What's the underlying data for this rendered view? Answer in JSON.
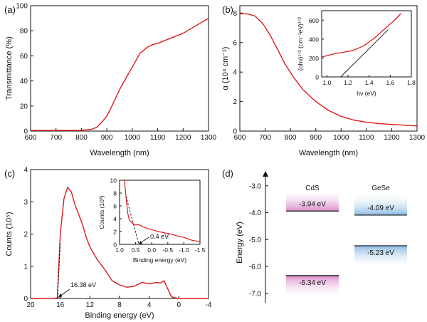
{
  "chart_data": [
    {
      "panel": "(a)",
      "type": "line",
      "xlabel": "Wavelength (nm)",
      "ylabel": "Transmittance (%)",
      "xlim": [
        600,
        1300
      ],
      "ylim": [
        0,
        100
      ],
      "xticks": [
        "600",
        "700",
        "800",
        "900",
        "1000",
        "1100",
        "1200",
        "1300"
      ],
      "yticks": [
        "0",
        "20",
        "40",
        "60",
        "80",
        "100"
      ],
      "color": "#e0191d",
      "series": [
        {
          "x": [
            600,
            700,
            800,
            840,
            860,
            880,
            900,
            920,
            950,
            980,
            1000,
            1030,
            1060,
            1080,
            1100,
            1150,
            1200,
            1250,
            1300
          ],
          "y": [
            0.5,
            0.5,
            0.6,
            1.5,
            3,
            7,
            12,
            20,
            33,
            44,
            51,
            62,
            67,
            69,
            70,
            74,
            78,
            84,
            90
          ]
        }
      ]
    },
    {
      "panel": "(b)",
      "type": "line",
      "xlabel": "Wavelength (nm)",
      "ylabel": "α (10⁴ cm⁻¹)",
      "xlim": [
        600,
        1300
      ],
      "ylim": [
        0,
        8.5
      ],
      "xticks": [
        "600",
        "700",
        "800",
        "900",
        "1000",
        "1100",
        "1200",
        "1300"
      ],
      "yticks": [
        "0",
        "2",
        "4",
        "6",
        "8"
      ],
      "color": "#e0191d",
      "series": [
        {
          "x": [
            600,
            630,
            660,
            690,
            720,
            750,
            780,
            810,
            850,
            900,
            950,
            1000,
            1050,
            1100,
            1150,
            1200,
            1250,
            1300
          ],
          "y": [
            7.95,
            7.95,
            7.8,
            7.3,
            6.5,
            5.5,
            4.5,
            3.7,
            2.8,
            2.0,
            1.4,
            1.0,
            0.75,
            0.6,
            0.5,
            0.45,
            0.4,
            0.35
          ]
        }
      ],
      "inset": {
        "xlabel": "hν (eV)",
        "ylabel": "(αhν)¹ᐟ² (cm⁻¹eV)¹ᐟ²",
        "xlim": [
          0.95,
          1.8
        ],
        "ylim": [
          0,
          700
        ],
        "xticks": [
          "1.0",
          "1.2",
          "1.4",
          "1.6",
          "1.8"
        ],
        "yticks": [
          "0",
          "200",
          "400",
          "600"
        ],
        "series": [
          {
            "x": [
              0.95,
              1.05,
              1.15,
              1.25,
              1.35,
              1.45,
              1.55,
              1.65,
              1.7
            ],
            "y": [
              210,
              240,
              260,
              280,
              330,
              410,
              510,
              610,
              670
            ]
          }
        ],
        "fit_line": {
          "x": [
            1.13,
            1.58
          ],
          "y": [
            0,
            500
          ]
        }
      }
    },
    {
      "panel": "(c)",
      "type": "line",
      "xlabel": "Binding energy (eV)",
      "ylabel": "Counts (10⁵)",
      "xlim": [
        20,
        -4
      ],
      "ylim": [
        0,
        4
      ],
      "xticks": [
        "20",
        "16",
        "12",
        "8",
        "4",
        "0",
        "-4"
      ],
      "yticks": [
        "0",
        "1",
        "2",
        "3",
        "4"
      ],
      "color": "#e0191d",
      "series": [
        {
          "x": [
            20,
            18,
            17,
            16.4,
            16.38,
            16,
            15.5,
            15,
            14.5,
            14,
            13.5,
            13,
            12.5,
            12,
            11,
            10,
            9,
            8,
            7,
            6,
            5,
            4,
            3,
            2.5,
            2,
            1.5,
            1,
            0.5,
            0,
            -4
          ],
          "y": [
            0,
            0,
            0,
            0.02,
            0.1,
            2.0,
            3.1,
            3.45,
            3.3,
            2.9,
            2.6,
            2.3,
            1.9,
            1.6,
            1.2,
            0.9,
            0.55,
            0.42,
            0.35,
            0.38,
            0.5,
            0.45,
            0.5,
            0.48,
            0.55,
            0.3,
            0.05,
            0.02,
            0,
            0
          ]
        }
      ],
      "annotation": "16.38 eV",
      "inset": {
        "xlabel": "Binding energy (eV)",
        "ylabel": "Counts (10³)",
        "xlim": [
          1.0,
          -1.5
        ],
        "ylim": [
          0,
          10
        ],
        "xticks": [
          "1.0",
          "0.5",
          "0.0",
          "-0.5",
          "-1.0",
          "-1.5"
        ],
        "yticks": [
          "0",
          "2",
          "4",
          "6",
          "8",
          "10"
        ],
        "series": [
          {
            "x": [
              0.85,
              0.8,
              0.75,
              0.7,
              0.6,
              0.5,
              0.4,
              0.3,
              0.2,
              0.1,
              0,
              -0.2,
              -0.4,
              -0.6,
              -0.8,
              -1.0,
              -1.2,
              -1.4,
              -1.5
            ],
            "y": [
              10,
              7.5,
              5.0,
              3.8,
              3.3,
              3.0,
              3.1,
              2.8,
              2.6,
              2.4,
              2.3,
              2.0,
              1.8,
              1.6,
              1.3,
              1.1,
              0.7,
              0.5,
              0.4
            ]
          }
        ],
        "fit_line": {
          "x": [
            0.8,
            0.4
          ],
          "y": [
            7.5,
            0
          ]
        },
        "annotation": "0.4 eV"
      }
    },
    {
      "panel": "(d)",
      "type": "diagram",
      "ylabel": "Energy (eV)",
      "ylim": [
        -7.35,
        -2.45
      ],
      "yticks": [
        "-3.0",
        "-4.0",
        "-5.0",
        "-6.0",
        "-7.0"
      ],
      "materials": [
        {
          "name": "CdS",
          "cb_label": "-3.94 eV",
          "cb": -3.94,
          "vb_label": "-6.34 eV",
          "vb": -6.34,
          "color": "#d97fc4"
        },
        {
          "name": "GeSe",
          "cb_label": "-4.09 eV",
          "cb": -4.09,
          "vb_label": "-5.23 eV",
          "vb": -5.23,
          "color": "#7fb3e0"
        }
      ]
    }
  ]
}
